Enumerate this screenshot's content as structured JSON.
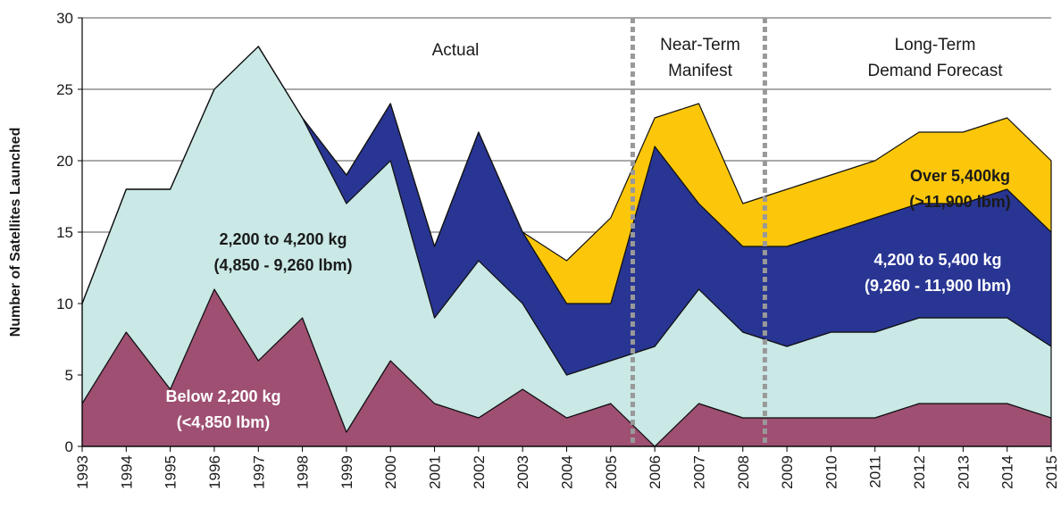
{
  "chart_data": {
    "type": "stacked-area",
    "y_label": "Number of Satellites Launched",
    "x": [
      1993,
      1994,
      1995,
      1996,
      1997,
      1998,
      1999,
      2000,
      2001,
      2002,
      2003,
      2004,
      2005,
      2006,
      2007,
      2008,
      2009,
      2010,
      2011,
      2012,
      2013,
      2014,
      2015
    ],
    "xlim": [
      1993,
      2015
    ],
    "xticks": [
      1993,
      1994,
      1995,
      1996,
      1997,
      1998,
      1999,
      2000,
      2001,
      2002,
      2003,
      2004,
      2005,
      2006,
      2007,
      2008,
      2009,
      2010,
      2011,
      2012,
      2013,
      2014,
      2015
    ],
    "ylim": [
      0,
      30
    ],
    "yticks": [
      0,
      5,
      10,
      15,
      20,
      25,
      30
    ],
    "grid": true,
    "series": [
      {
        "name": "Below 2,200 kg",
        "subname": "(<4,850 lbm)",
        "color": "#9e4f72",
        "label_color": "#ffffff",
        "values": [
          3,
          8,
          4,
          11,
          6,
          9,
          1,
          6,
          3,
          2,
          4,
          2,
          3,
          0,
          3,
          2,
          2,
          2,
          2,
          3,
          3,
          3,
          2
        ]
      },
      {
        "name": "2,200 to 4,200 kg",
        "subname": "(4,850 - 9,260 lbm)",
        "color": "#c9e8e6",
        "label_color": "#1a1a1a",
        "values": [
          7,
          10,
          14,
          14,
          22,
          14,
          16,
          14,
          6,
          11,
          6,
          3,
          3,
          7,
          8,
          6,
          5,
          6,
          6,
          6,
          6,
          6,
          5
        ]
      },
      {
        "name": "4,200 to 5,400 kg",
        "subname": "(9,260 - 11,900 lbm)",
        "color": "#283593",
        "label_color": "#ffffff",
        "values": [
          0,
          0,
          0,
          0,
          0,
          0,
          2,
          4,
          5,
          9,
          5,
          5,
          4,
          14,
          6,
          6,
          7,
          7,
          8,
          8,
          8,
          9,
          8
        ]
      },
      {
        "name": "Over 5,400kg",
        "subname": "(>11,900 lbm)",
        "color": "#fcc70a",
        "label_color": "#1a1a1a",
        "values": [
          0,
          0,
          0,
          0,
          0,
          0,
          0,
          0,
          0,
          0,
          0,
          3,
          6,
          2,
          7,
          3,
          4,
          4,
          4,
          5,
          5,
          5,
          5
        ]
      }
    ],
    "dividers": [
      2005.5,
      2008.5
    ],
    "annotations": [
      {
        "lines": [
          "Actual"
        ]
      },
      {
        "lines": [
          "Near-Term",
          "Manifest"
        ]
      },
      {
        "lines": [
          "Long-Term",
          "Demand Forecast"
        ]
      }
    ]
  }
}
